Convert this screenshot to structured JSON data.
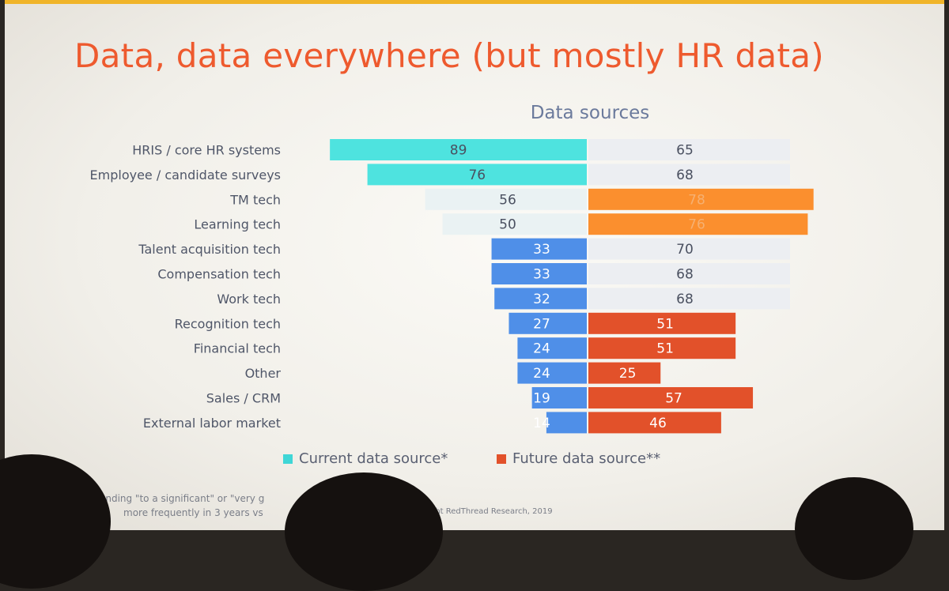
{
  "title": "Data, data everywhere (but mostly HR data)",
  "chart_data": {
    "type": "bar",
    "subtitle": "Data sources",
    "categories": [
      "HRIS / core HR systems",
      "Employee / candidate surveys",
      "TM tech",
      "Learning tech",
      "Talent acquisition tech",
      "Compensation tech",
      "Work tech",
      "Recognition tech",
      "Financial tech",
      "Other",
      "Sales / CRM",
      "External labor market"
    ],
    "series": [
      {
        "name": "Current data source*",
        "values": [
          89,
          76,
          56,
          50,
          33,
          33,
          32,
          27,
          24,
          24,
          19,
          14
        ]
      },
      {
        "name": "Future data source**",
        "values": [
          65,
          68,
          78,
          76,
          70,
          68,
          68,
          51,
          51,
          25,
          57,
          46
        ]
      }
    ],
    "colors": {
      "current_highlight": "#4ee3df",
      "current": "#4f8fe8",
      "current_faded": "#eaf2f3",
      "future_highlight": "#fb8f2e",
      "future": "#e2512a",
      "future_faded": "#eceef2"
    },
    "current_styles": [
      "highlight",
      "highlight",
      "faded",
      "faded",
      "normal",
      "normal",
      "normal",
      "normal",
      "normal",
      "normal",
      "normal",
      "normal"
    ],
    "future_styles": [
      "faded",
      "faded",
      "highlight",
      "highlight",
      "faded",
      "faded",
      "faded",
      "normal",
      "normal",
      "normal",
      "normal",
      "normal"
    ]
  },
  "legend": {
    "current_label": "Current data source*",
    "future_label": "Future data source**",
    "current_color": "#3fd6d6",
    "future_color": "#e2512a"
  },
  "footnote": {
    "line1": "onding \"to a significant\" or \"very g",
    "line2": "more frequently in 3 years vs",
    "credit": "ght RedThread Research, 2019"
  }
}
